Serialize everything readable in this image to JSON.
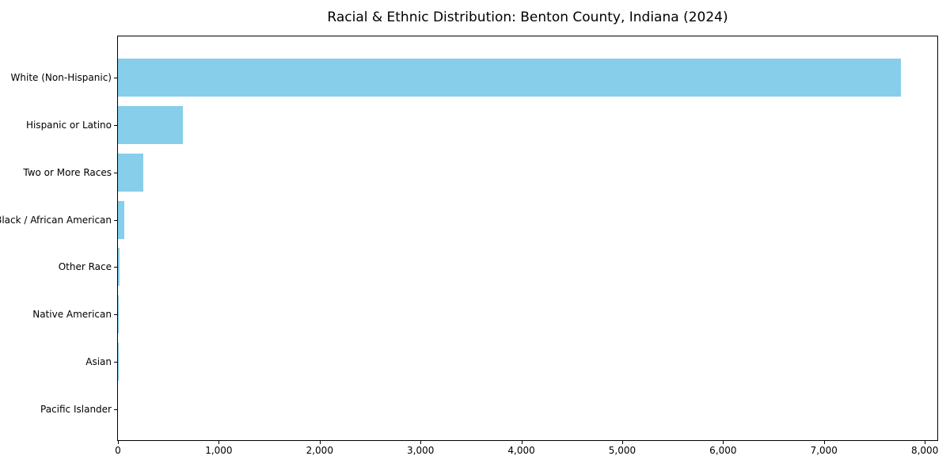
{
  "title": "Racial & Ethnic Distribution: Benton County, Indiana (2024)",
  "chart_data": {
    "type": "bar",
    "orientation": "horizontal",
    "title": "Racial & Ethnic Distribution: Benton County, Indiana (2024)",
    "categories": [
      "White (Non-Hispanic)",
      "Hispanic or Latino",
      "Two or More Races",
      "Black / African American",
      "Other Race",
      "Native American",
      "Asian",
      "Pacific Islander"
    ],
    "values": [
      7760,
      645,
      250,
      65,
      12,
      3,
      2,
      0
    ],
    "xlabel": "",
    "ylabel": "",
    "xlim": [
      0,
      8140
    ],
    "x_ticks": [
      0,
      1000,
      2000,
      3000,
      4000,
      5000,
      6000,
      7000,
      8000
    ],
    "x_tick_labels": [
      "0",
      "1,000",
      "2,000",
      "3,000",
      "4,000",
      "5,000",
      "6,000",
      "7,000",
      "8,000"
    ],
    "bar_color": "#87CEEB",
    "axis_color": "#000000",
    "background_color": "#ffffff",
    "grid": false,
    "legend": null
  }
}
